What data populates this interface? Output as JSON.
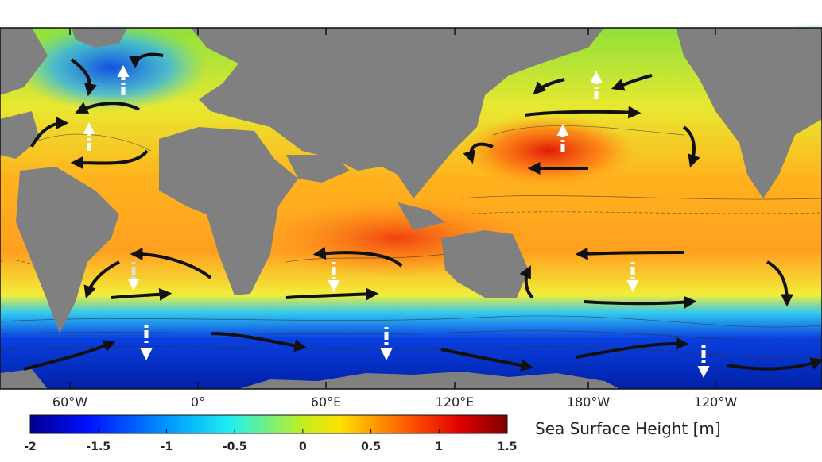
{
  "map": {
    "longitude_labels": [
      "60°W",
      "0°",
      "60°E",
      "120°E",
      "180°W",
      "120°W"
    ],
    "colorbar": {
      "label": "Sea Surface Height [m]",
      "clim": [
        -2,
        1.5
      ],
      "ticks": [
        -2,
        -1.5,
        -1,
        -0.5,
        0,
        0.5,
        1,
        1.5
      ]
    }
  }
}
